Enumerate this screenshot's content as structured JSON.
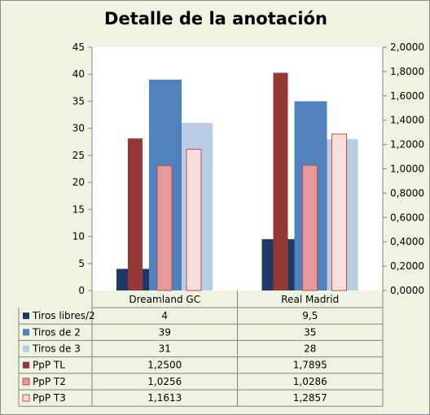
{
  "chart_data": {
    "type": "bar",
    "title": "Detalle de la anotación",
    "categories": [
      "Dreamland GC",
      "Real Madrid"
    ],
    "y_left": {
      "range": [
        0,
        45
      ],
      "ticks": [
        "0",
        "5",
        "10",
        "15",
        "20",
        "25",
        "30",
        "35",
        "40",
        "45"
      ]
    },
    "y_right": {
      "range": [
        0,
        2
      ],
      "ticks": [
        "0,0000",
        "0,2000",
        "0,4000",
        "0,6000",
        "0,8000",
        "1,0000",
        "1,2000",
        "1,4000",
        "1,6000",
        "1,8000",
        "2,0000"
      ]
    },
    "grid": false,
    "legend": "table-bottom",
    "series": [
      {
        "name": "Tiros libres/2",
        "axis": "left",
        "values": [
          4,
          9.5
        ],
        "labels": [
          "4",
          "9,5"
        ],
        "color": "#1f3864"
      },
      {
        "name": "Tiros de 2",
        "axis": "left",
        "values": [
          39,
          35
        ],
        "labels": [
          "39",
          "35"
        ],
        "color": "#4f81bd"
      },
      {
        "name": "Tiros de 3",
        "axis": "left",
        "values": [
          31,
          28
        ],
        "labels": [
          "31",
          "28"
        ],
        "color": "#b9cde5"
      },
      {
        "name": "PpP TL",
        "axis": "right",
        "values": [
          1.25,
          1.7895
        ],
        "labels": [
          "1,2500",
          "1,7895"
        ],
        "color": "#953735"
      },
      {
        "name": "PpP T2",
        "axis": "right",
        "values": [
          1.0256,
          1.0286
        ],
        "labels": [
          "1,0256",
          "1,0286"
        ],
        "color": "#e6999b"
      },
      {
        "name": "PpP T3",
        "axis": "right",
        "values": [
          1.1613,
          1.2857
        ],
        "labels": [
          "1,1613",
          "1,2857"
        ],
        "color": "#f9dcdc"
      }
    ]
  }
}
